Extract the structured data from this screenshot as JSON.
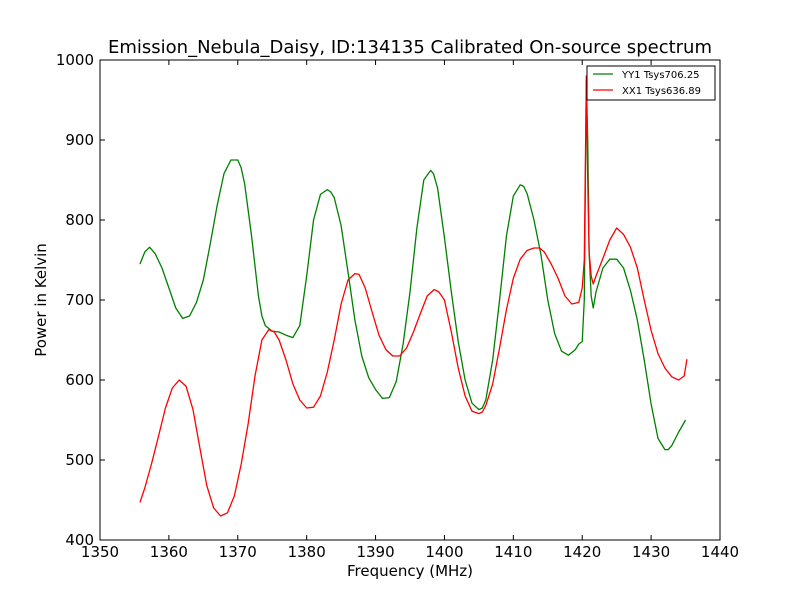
{
  "chart_data": {
    "type": "line",
    "title": "Emission_Nebula_Daisy, ID:134135 Calibrated On-source spectrum",
    "xlabel": "Frequency (MHz)",
    "ylabel": "Power in Kelvin",
    "xlim": [
      1350,
      1440
    ],
    "ylim": [
      400,
      1000
    ],
    "xticks": [
      1350,
      1360,
      1370,
      1380,
      1390,
      1400,
      1410,
      1420,
      1430,
      1440
    ],
    "yticks": [
      400,
      500,
      600,
      700,
      800,
      900,
      1000
    ],
    "grid": false,
    "legend_position": "top-right",
    "series": [
      {
        "name": "YY1 Tsys706.25",
        "color": "#008000",
        "x": [
          1355.8,
          1356.5,
          1357.2,
          1358.0,
          1359.0,
          1360.0,
          1361.0,
          1362.0,
          1363.0,
          1364.0,
          1365.0,
          1366.0,
          1367.0,
          1368.0,
          1369.0,
          1370.0,
          1370.5,
          1371.0,
          1372.0,
          1373.0,
          1373.5,
          1374.0,
          1375.0,
          1376.0,
          1377.0,
          1378.0,
          1379.0,
          1380.0,
          1381.0,
          1382.0,
          1383.0,
          1383.5,
          1384.0,
          1385.0,
          1386.0,
          1387.0,
          1388.0,
          1389.0,
          1390.0,
          1391.0,
          1392.0,
          1393.0,
          1394.0,
          1395.0,
          1396.0,
          1397.0,
          1398.0,
          1398.4,
          1399.0,
          1400.0,
          1401.0,
          1402.0,
          1403.0,
          1404.0,
          1405.0,
          1405.5,
          1406.0,
          1407.0,
          1408.0,
          1409.0,
          1410.0,
          1411.0,
          1411.5,
          1412.0,
          1413.0,
          1414.0,
          1415.0,
          1416.0,
          1417.0,
          1418.0,
          1419.0,
          1419.5,
          1420.0,
          1420.3,
          1420.6,
          1420.8,
          1421.0,
          1421.3,
          1421.6,
          1422.0,
          1423.0,
          1424.0,
          1425.0,
          1426.0,
          1427.0,
          1428.0,
          1429.0,
          1430.0,
          1431.0,
          1432.0,
          1432.5,
          1433.0,
          1434.0,
          1435.0
        ],
        "y": [
          745,
          760,
          766,
          758,
          740,
          715,
          690,
          677,
          680,
          697,
          725,
          770,
          818,
          858,
          875,
          875,
          865,
          845,
          780,
          705,
          680,
          668,
          661,
          660,
          656,
          653,
          668,
          730,
          800,
          832,
          838,
          835,
          828,
          793,
          735,
          675,
          630,
          603,
          588,
          577,
          578,
          598,
          645,
          710,
          790,
          850,
          862,
          858,
          840,
          778,
          710,
          648,
          600,
          571,
          563,
          565,
          575,
          625,
          700,
          780,
          830,
          844,
          842,
          833,
          800,
          757,
          700,
          658,
          636,
          631,
          638,
          645,
          648,
          700,
          975,
          900,
          760,
          705,
          690,
          710,
          740,
          751,
          751,
          740,
          712,
          675,
          625,
          570,
          527,
          513,
          513,
          518,
          535,
          550
        ]
      },
      {
        "name": "XX1 Tsys636.89",
        "color": "#ff0000",
        "x": [
          1355.8,
          1356.5,
          1357.5,
          1358.5,
          1359.5,
          1360.5,
          1361.5,
          1362.5,
          1363.5,
          1364.5,
          1365.5,
          1366.5,
          1367.5,
          1368.5,
          1369.5,
          1370.5,
          1371.5,
          1372.5,
          1373.5,
          1374.5,
          1375.3,
          1376.0,
          1377.0,
          1378.0,
          1379.0,
          1380.0,
          1381.0,
          1382.0,
          1383.0,
          1384.0,
          1385.0,
          1386.0,
          1387.0,
          1387.6,
          1388.5,
          1389.5,
          1390.5,
          1391.5,
          1392.5,
          1393.5,
          1394.5,
          1395.5,
          1396.5,
          1397.5,
          1398.5,
          1399.2,
          1400.0,
          1401.0,
          1402.0,
          1403.0,
          1404.0,
          1405.0,
          1405.5,
          1406.0,
          1407.0,
          1408.0,
          1409.0,
          1410.0,
          1411.0,
          1412.0,
          1413.0,
          1413.8,
          1414.5,
          1415.5,
          1416.5,
          1417.5,
          1418.5,
          1419.5,
          1420.0,
          1420.3,
          1420.6,
          1420.8,
          1421.0,
          1421.3,
          1421.6,
          1422.0,
          1423.0,
          1424.0,
          1425.0,
          1426.0,
          1427.0,
          1428.0,
          1429.0,
          1430.0,
          1431.0,
          1432.0,
          1433.0,
          1434.0,
          1434.8,
          1435.2
        ],
        "y": [
          447,
          465,
          496,
          530,
          565,
          590,
          600,
          592,
          563,
          515,
          468,
          440,
          430,
          434,
          455,
          495,
          545,
          605,
          650,
          663,
          660,
          650,
          625,
          595,
          575,
          565,
          566,
          580,
          610,
          650,
          695,
          725,
          733,
          732,
          715,
          685,
          656,
          638,
          630,
          630,
          640,
          660,
          683,
          705,
          713,
          710,
          700,
          660,
          615,
          580,
          561,
          558,
          560,
          568,
          595,
          640,
          688,
          727,
          751,
          762,
          765,
          765,
          760,
          745,
          727,
          705,
          695,
          697,
          715,
          750,
          980,
          850,
          760,
          730,
          720,
          730,
          752,
          775,
          790,
          782,
          766,
          740,
          700,
          662,
          633,
          615,
          604,
          600,
          605,
          626
        ]
      }
    ]
  }
}
